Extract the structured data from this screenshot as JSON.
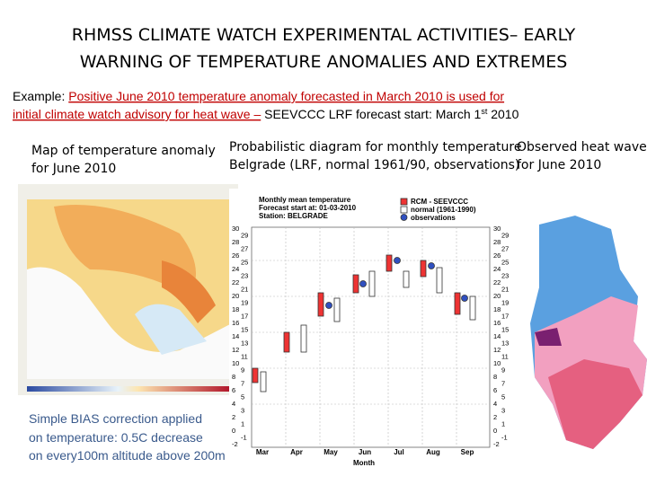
{
  "header": {
    "title_lines": [
      "RHMSS CLIMATE WATCH EXPERIMENTAL ACTIVITIES– EARLY",
      "WARNING OF TEMPERATURE ANOMALIES AND EXTREMES"
    ]
  },
  "intro": {
    "label": "Example: ",
    "highlight_1": "Positive June 2010 temperature anomaly forecasted in March 2010 is used for",
    "highlight_2": "initial climate watch advisory for heat wave –",
    "rest": " SEEVCCC LRF forecast start: March 1",
    "sup": "st",
    "end": " 2010"
  },
  "captions": [
    {
      "lines": [
        "Map of temperature anomaly",
        "for June 2010"
      ]
    },
    {
      "lines": [
        "Probabilistic diagram for monthly temperature",
        "Belgrade (LRF, normal 1961/90, observations)"
      ]
    },
    {
      "lines": [
        "Observed heat wave",
        "for June 2010"
      ]
    }
  ],
  "figure": {
    "title_lines": [
      "Monthly mean temperature",
      "Forecast start at: 01-03-2010",
      "Station: BELGRADE"
    ],
    "legend": [
      "RCM - SEEVCCC",
      "normal (1961-1990)",
      "observations"
    ],
    "months": [
      "Mar",
      "Apr",
      "May",
      "Jun",
      "Jul",
      "Aug",
      "Sep"
    ],
    "axis_label": "Month",
    "ticks": [
      30,
      29,
      28,
      27,
      26,
      25,
      24,
      23,
      22,
      21,
      20,
      19,
      18,
      17,
      16,
      15,
      14,
      13,
      12,
      11,
      10,
      9,
      8,
      7,
      6,
      5,
      4,
      3,
      2,
      1,
      0,
      -1,
      -2
    ]
  },
  "note": {
    "lines": [
      "Simple BIAS correction applied",
      "on temperature: 0.5C decrease",
      "on  every100m altitude above 200m"
    ]
  }
}
